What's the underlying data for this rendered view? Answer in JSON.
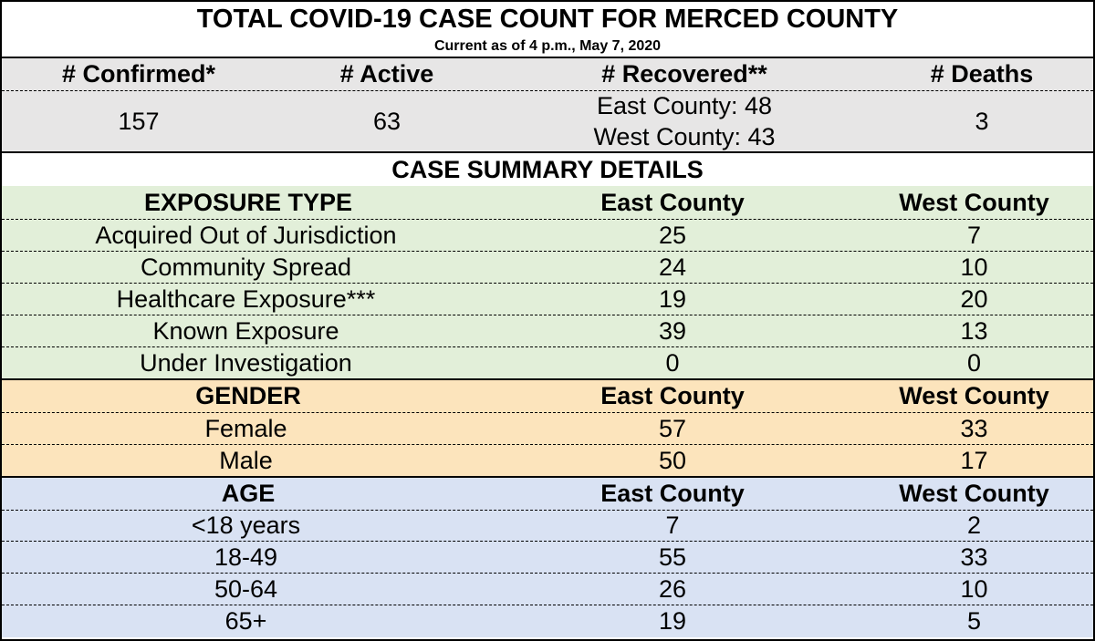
{
  "title": "TOTAL COVID-19 CASE COUNT FOR MERCED COUNTY",
  "subtitle": "Current as of 4 p.m., May 7, 2020",
  "summary": {
    "headers": [
      "# Confirmed*",
      "# Active",
      "# Recovered**",
      "# Deaths"
    ],
    "confirmed": "157",
    "active": "63",
    "recovered_east": "East County: 48",
    "recovered_west": "West County: 43",
    "deaths": "3"
  },
  "details_title": "CASE SUMMARY DETAILS",
  "exposure": {
    "header": "EXPOSURE TYPE",
    "col_east": "East County",
    "col_west": "West County",
    "rows": [
      [
        "Acquired Out of Jurisdiction",
        "25",
        "7"
      ],
      [
        "Community Spread",
        "24",
        "10"
      ],
      [
        "Healthcare Exposure***",
        "19",
        "20"
      ],
      [
        "Known Exposure",
        "39",
        "13"
      ],
      [
        "Under Investigation",
        "0",
        "0"
      ]
    ]
  },
  "gender": {
    "header": "GENDER",
    "col_east": "East County",
    "col_west": "West County",
    "rows": [
      [
        "Female",
        "57",
        "33"
      ],
      [
        "Male",
        "50",
        "17"
      ]
    ]
  },
  "age": {
    "header": "AGE",
    "col_east": "East County",
    "col_west": "West County",
    "rows": [
      [
        "<18 years",
        "7",
        "2"
      ],
      [
        "18-49",
        "55",
        "33"
      ],
      [
        "50-64",
        "26",
        "10"
      ],
      [
        "65+",
        "19",
        "5"
      ]
    ]
  }
}
